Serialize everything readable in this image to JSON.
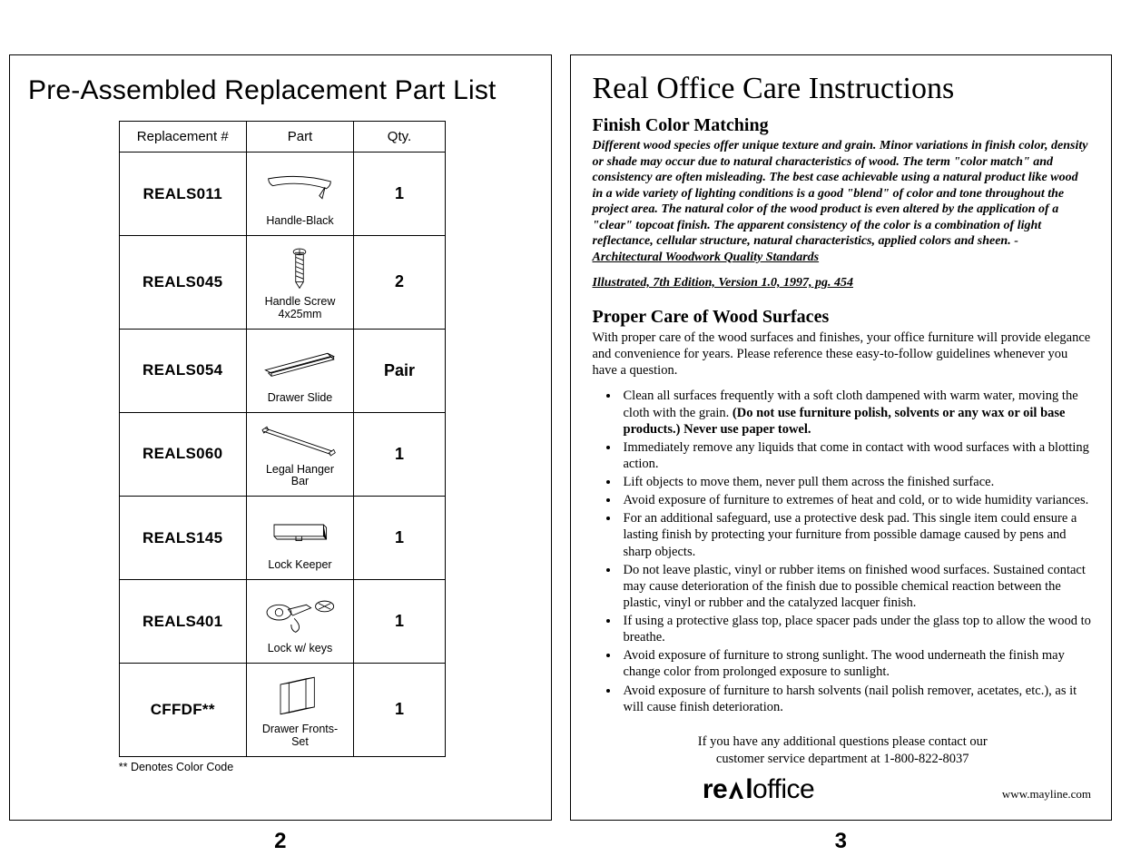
{
  "left": {
    "title": "Pre-Assembled Replacement Part List",
    "headers": {
      "rep": "Replacement #",
      "part": "Part",
      "qty": "Qty."
    },
    "rows": [
      {
        "rep": "REALS011",
        "caption": "Handle-Black",
        "qty": "1",
        "icon": "handle"
      },
      {
        "rep": "REALS045",
        "caption": "Handle Screw\n4x25mm",
        "qty": "2",
        "icon": "screw"
      },
      {
        "rep": "REALS054",
        "caption": "Drawer Slide",
        "qty": "Pair",
        "icon": "slide"
      },
      {
        "rep": "REALS060",
        "caption": "Legal Hanger Bar",
        "qty": "1",
        "icon": "hanger"
      },
      {
        "rep": "REALS145",
        "caption": "Lock Keeper",
        "qty": "1",
        "icon": "keeper"
      },
      {
        "rep": "REALS401",
        "caption": "Lock w/ keys",
        "qty": "1",
        "icon": "lock"
      },
      {
        "rep": "CFFDF**",
        "caption": "Drawer Fronts-Set",
        "qty": "1",
        "icon": "fronts"
      }
    ],
    "footnote": "** Denotes Color Code",
    "pageNumber": "2"
  },
  "right": {
    "title": "Real Office Care Instructions",
    "finish": {
      "heading": "Finish Color Matching",
      "body": "Different wood species offer unique texture and grain.  Minor variations in finish color, density or shade may occur due to natural characteristics of wood.  The term \"color match\" and consistency are often misleading.  The best case achievable using a natural product like wood in a wide variety of lighting conditions is a good \"blend\" of color and tone throughout the project area.  The natural color of the wood product is even altered by the application of a \"clear\" topcoat finish.  The apparent consistency of the color is a combination of light reflectance, cellular structure, natural characteristics, applied colors and sheen. - ",
      "source": "Architectural Woodwork Quality Standards",
      "illustrated": "Illustrated, 7th Edition, Version 1.0, 1997, pg. 454"
    },
    "care": {
      "heading": "Proper Care of Wood Surfaces",
      "intro": "With proper care of the wood surfaces and finishes, your office furniture will provide elegance and convenience for years.  Please reference these easy-to-follow guidelines whenever you have a question.",
      "items": [
        {
          "pre": "Clean all surfaces frequently with a soft cloth dampened with warm water, moving the cloth with the grain.  ",
          "bold": "(Do not use furniture polish, solvents or any wax or oil base products.)  Never use paper towel.",
          "post": ""
        },
        {
          "pre": "Immediately remove any liquids that come in contact with wood surfaces with a blotting action.",
          "bold": "",
          "post": ""
        },
        {
          "pre": "Lift objects to move them, never pull them across the finished surface.",
          "bold": "",
          "post": ""
        },
        {
          "pre": "Avoid exposure of furniture to extremes of heat and cold, or to wide humidity variances.",
          "bold": "",
          "post": ""
        },
        {
          "pre": "For an additional safeguard, use a protective desk pad.  This single item could ensure a lasting finish by protecting your furniture from possible damage caused by pens and sharp objects.",
          "bold": "",
          "post": ""
        },
        {
          "pre": "Do not leave plastic, vinyl or rubber items on finished wood surfaces.  Sustained contact may cause deterioration of the finish due to possible chemical reaction between the plastic, vinyl or rubber and the catalyzed lacquer finish.",
          "bold": "",
          "post": ""
        },
        {
          "pre": "If using a protective glass top, place spacer pads under the glass top to allow the wood to breathe.",
          "bold": "",
          "post": ""
        },
        {
          "pre": "Avoid exposure of furniture to strong sunlight.  The wood underneath the finish may change color from prolonged exposure to sunlight.",
          "bold": "",
          "post": ""
        },
        {
          "pre": "Avoid exposure of furniture to harsh solvents (nail polish remover, acetates, etc.), as it will cause finish deterioration.",
          "bold": "",
          "post": ""
        }
      ],
      "contact1": "If you have any additional questions please contact our",
      "contact2": "customer service department at 1-800-822-8037"
    },
    "logo": {
      "re": "re",
      "al": "l",
      "office": "office"
    },
    "url": "www.mayline.com",
    "pageNumber": "3"
  },
  "icons": {
    "handle": "<svg viewBox='0 0 100 46' width='78' height='42'><path d='M6 10 Q50 2 94 14 Q94 20 88 24 Q50 12 12 20 Q6 16 6 10 Z' fill='none' stroke='#000' stroke-width='1.2'/><path d='M86 22 L82 38 L78 34 Z' fill='none' stroke='#000' stroke-width='1.2'/></svg>",
    "screw": "<svg viewBox='0 0 40 60' width='34' height='54'><ellipse cx='20' cy='7' rx='8' ry='4' fill='none' stroke='#000' stroke-width='1'/><path d='M14 8 L26 8' stroke='#000' stroke-width='1'/><path d='M20 4 L20 10' stroke='#000' stroke-width='1'/><rect x='15' y='10' width='10' height='36' fill='none' stroke='#000' stroke-width='1'/><path d='M15 14 L25 18 M15 20 L25 24 M15 26 L25 30 M15 32 L25 36 M15 38 L25 42' stroke='#000' stroke-width='1'/><path d='M15 46 L20 54 L25 46' fill='none' stroke='#000' stroke-width='1'/></svg>",
    "slide": "<svg viewBox='0 0 110 44' width='92' height='40'><path d='M10 30 L92 8 L100 12 L18 34 Z' fill='none' stroke='#000' stroke-width='1.1'/><path d='M14 34 L96 12 L100 16 L18 38 Z' fill='none' stroke='#000' stroke-width='1.1'/><path d='M18 38 L18 34 M100 16 L100 12 M96 12 L92 8' stroke='#000' stroke-width='1.1'/></svg>",
    "hanger": "<svg viewBox='0 0 110 48' width='92' height='44'><path d='M8 10 L96 40' stroke='#000' stroke-width='1.1'/><path d='M10 6 L98 36' stroke='#000' stroke-width='1.1'/><path d='M6 8 L12 4 L14 8 L8 12 Z' fill='none' stroke='#000' stroke-width='1'/><path d='M94 38 L100 34 L102 38 L96 42 Z' fill='none' stroke='#000' stroke-width='1'/></svg>",
    "keeper": "<svg viewBox='0 0 90 40' width='72' height='34'><path d='M10 10 L78 10 L82 14 L82 30 L14 30 L10 26 Z' fill='none' stroke='#000' stroke-width='1.1'/><path d='M78 10 L78 26 L82 30 M10 26 L78 26' stroke='#000' stroke-width='1.1'/><path d='M40 26 L40 32 L48 32 L48 26' fill='none' stroke='#000' stroke-width='1.1'/></svg>",
    "lock": "<svg viewBox='0 0 110 56' width='92' height='50'><ellipse cx='28' cy='24' rx='16' ry='10' fill='none' stroke='#000' stroke-width='1.1'/><path d='M40 20 L64 14 L70 18 L46 28 Z' fill='none' stroke='#000' stroke-width='1.1'/><circle cx='28' cy='24' r='5' fill='none' stroke='#000' stroke-width='1'/><path d='M48 32 Q60 44 50 50 Q44 48 44 40' fill='none' stroke='#000' stroke-width='1.1'/><ellipse cx='88' cy='16' rx='12' ry='7' fill='none' stroke='#000' stroke-width='1.1'/><path d='M80 12 L96 20 M80 20 L96 12' stroke='#000' stroke-width='1'/></svg>",
    "fronts": "<svg viewBox='0 0 90 64' width='70' height='54'><path d='M18 14 L54 6 L54 48 L18 56 Z' fill='none' stroke='#000' stroke-width='1.1'/><path d='M30 12 L66 4 L66 46 L30 54 Z' fill='none' stroke='#000' stroke-width='1.1'/><path d='M54 6 L66 4 M54 48 L66 46 M18 14 L30 12 M18 56 L30 54' stroke='#000' stroke-width='1.1'/></svg>"
  }
}
